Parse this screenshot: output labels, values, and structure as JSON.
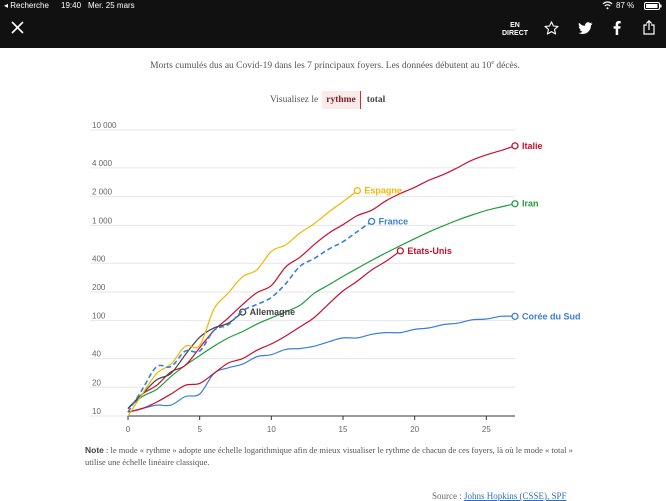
{
  "status_bar": {
    "back_app": "◂ Recherche",
    "time": "19:40",
    "date": "Mer. 25 mars",
    "battery": "87 %"
  },
  "app_bar": {
    "live_line1": "EN",
    "live_line2": "DIRECT"
  },
  "caption": {
    "text_before": "Morts cumulés dus au Covid-19 dans les 7 principaux foyers. Les données débutent au 10",
    "superscript": "e",
    "text_after": " décès."
  },
  "toggle": {
    "prompt": "Visualisez le",
    "options": [
      "rythme",
      "total"
    ],
    "selected": "rythme"
  },
  "chart_data": {
    "type": "line",
    "y_scale": "log",
    "ylim": [
      10,
      10000
    ],
    "xlim": [
      0,
      27
    ],
    "x_ticks": [
      0,
      5,
      10,
      15,
      20,
      25
    ],
    "y_ticks": [
      10,
      20,
      40,
      100,
      200,
      400,
      1000,
      2000,
      4000,
      10000
    ],
    "y_tick_labels": [
      "10",
      "20",
      "40",
      "100",
      "200",
      "400",
      "1 000",
      "2 000",
      "4 000",
      "10 000"
    ],
    "series": [
      {
        "name": "Italie",
        "color": "#c8102e",
        "dashed": false,
        "x": [
          0,
          1,
          2,
          3,
          4,
          5,
          6,
          7,
          8,
          9,
          10,
          11,
          12,
          13,
          14,
          15,
          16,
          17,
          18,
          19,
          20,
          21,
          22,
          23,
          24,
          25,
          26,
          27
        ],
        "y": [
          12,
          17,
          21,
          29,
          34,
          52,
          79,
          107,
          148,
          197,
          233,
          366,
          463,
          631,
          827,
          1016,
          1266,
          1441,
          1809,
          2158,
          2503,
          2978,
          3405,
          4032,
          4825,
          5476,
          6077,
          6820
        ]
      },
      {
        "name": "Espagne",
        "color": "#f2b705",
        "dashed": false,
        "x": [
          0,
          1,
          2,
          3,
          4,
          5,
          6,
          7,
          8,
          9,
          10,
          11,
          12,
          13,
          14,
          15,
          16
        ],
        "y": [
          10,
          17,
          28,
          35,
          54,
          55,
          133,
          195,
          289,
          342,
          533,
          623,
          830,
          1043,
          1375,
          1772,
          2311
        ]
      },
      {
        "name": "Iran",
        "color": "#1e9e3c",
        "dashed": false,
        "x": [
          0,
          1,
          2,
          3,
          4,
          5,
          6,
          7,
          8,
          9,
          10,
          11,
          12,
          13,
          14,
          15,
          16,
          17,
          18,
          19,
          20,
          21,
          22,
          23,
          24,
          25,
          26,
          27
        ],
        "y": [
          12,
          16,
          19,
          26,
          34,
          43,
          54,
          66,
          77,
          92,
          107,
          124,
          145,
          194,
          237,
          291,
          354,
          429,
          514,
          611,
          724,
          853,
          988,
          1135,
          1284,
          1433,
          1556,
          1685
        ]
      },
      {
        "name": "France",
        "color": "#3a7fd5",
        "dashed": true,
        "x": [
          0,
          1,
          2,
          3,
          4,
          5,
          6,
          7,
          8,
          9,
          10,
          11,
          12,
          13,
          14,
          15,
          16,
          17
        ],
        "y": [
          11,
          19,
          33,
          33,
          48,
          48,
          79,
          91,
          127,
          148,
          175,
          244,
          372,
          450,
          562,
          674,
          860,
          1100
        ]
      },
      {
        "name": "Etats-Unis",
        "color": "#c8102e",
        "dashed": false,
        "x": [
          0,
          1,
          2,
          3,
          4,
          5,
          6,
          7,
          8,
          9,
          10,
          11,
          12,
          13,
          14,
          15,
          16,
          17,
          18,
          19
        ],
        "y": [
          11,
          12,
          14,
          17,
          21,
          22,
          28,
          36,
          40,
          49,
          57,
          69,
          86,
          108,
          150,
          205,
          260,
          340,
          420,
          540
        ]
      },
      {
        "name": "Allemagne",
        "color": "#444444",
        "dashed": false,
        "x": [
          0,
          1,
          2,
          3,
          4,
          5,
          6,
          7,
          8
        ],
        "y": [
          12,
          17,
          24,
          28,
          44,
          67,
          84,
          94,
          123
        ]
      },
      {
        "name": "Corée du Sud",
        "color": "#3a7fd5",
        "dashed": false,
        "x": [
          0,
          1,
          2,
          3,
          4,
          5,
          6,
          7,
          8,
          9,
          10,
          11,
          12,
          13,
          14,
          15,
          16,
          17,
          18,
          19,
          20,
          21,
          22,
          23,
          24,
          25,
          26,
          27
        ],
        "y": [
          11,
          12,
          13,
          13,
          16,
          17,
          28,
          32,
          35,
          42,
          44,
          50,
          51,
          54,
          60,
          66,
          66,
          72,
          75,
          75,
          81,
          84,
          91,
          94,
          102,
          104,
          111,
          111
        ]
      }
    ]
  },
  "note": {
    "label": "Note",
    "text": " : le mode « rythme » adopte une échelle logarithmique afin de mieux visualiser le rythme de chacun de ces foyers, là où le mode « total » utilise une échelle linéaire classique."
  },
  "source": {
    "prefix": "Source : ",
    "link": "Johns Hopkins (CSSE), SPF"
  }
}
